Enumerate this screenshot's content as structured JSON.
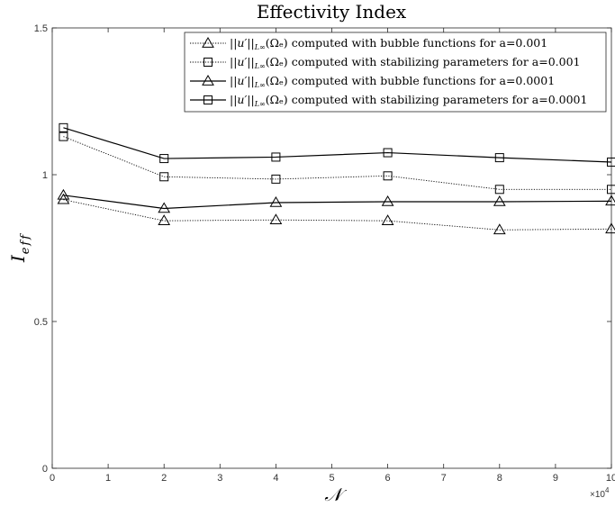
{
  "chart_data": {
    "type": "line",
    "title": "Effectivity Index",
    "xlabel": "𝒩",
    "ylabel": "I_{eff}",
    "ylabel_main": "I",
    "ylabel_sub": "eff",
    "xlim": [
      0,
      10
    ],
    "ylim": [
      0,
      1.5
    ],
    "x_scale_label": "×10^4",
    "x_scale_base": "×10",
    "x_scale_exp": "4",
    "x_ticks": [
      "0",
      "1",
      "2",
      "3",
      "4",
      "5",
      "6",
      "7",
      "8",
      "9",
      "10"
    ],
    "y_ticks": [
      "0",
      "0.5",
      "1",
      "1.5"
    ],
    "y_tick_values": [
      0,
      0.5,
      1,
      1.5
    ],
    "grid": false,
    "legend_position": "top-right",
    "series": [
      {
        "name": "||u'||_{L^∞(Ω_e)} computed with bubble functions for a=0.001",
        "legend_norm": "||u′||",
        "legend_sub": "L∞",
        "legend_omega": "(Ωₑ)",
        "legend_desc": "computed with bubble functions for a=0.001",
        "marker": "triangle",
        "line": "dotted",
        "x": [
          0.2,
          2,
          4,
          6,
          8,
          10
        ],
        "values": [
          0.915,
          0.843,
          0.846,
          0.843,
          0.812,
          0.815
        ]
      },
      {
        "name": "||u'||_{L^∞(Ω_e)} computed with stabilizing parameters for a=0.001",
        "legend_norm": "||u′||",
        "legend_sub": "L∞",
        "legend_omega": "(Ωₑ)",
        "legend_desc": "computed with stabilizing parameters for a=0.001",
        "marker": "square",
        "line": "dotted",
        "x": [
          0.2,
          2,
          4,
          6,
          8,
          10
        ],
        "values": [
          1.13,
          0.993,
          0.985,
          0.996,
          0.95,
          0.95
        ]
      },
      {
        "name": "||u'||_{L^∞(Ω_e)} computed with bubble functions for a=0.0001",
        "legend_norm": "||u′||",
        "legend_sub": "L∞",
        "legend_omega": "(Ωₑ)",
        "legend_desc": "computed with bubble functions for a=0.0001",
        "marker": "triangle",
        "line": "solid",
        "x": [
          0.2,
          2,
          4,
          6,
          8,
          10
        ],
        "values": [
          0.93,
          0.885,
          0.905,
          0.908,
          0.908,
          0.91
        ]
      },
      {
        "name": "||u'||_{L^∞(Ω_e)} computed with stabilizing parameters for a=0.0001",
        "legend_norm": "||u′||",
        "legend_sub": "L∞",
        "legend_omega": "(Ωₑ)",
        "legend_desc": "computed with stabilizing parameters for a=0.0001",
        "marker": "square",
        "line": "solid",
        "x": [
          0.2,
          2,
          4,
          6,
          8,
          10
        ],
        "values": [
          1.16,
          1.055,
          1.06,
          1.075,
          1.058,
          1.043
        ]
      }
    ]
  }
}
